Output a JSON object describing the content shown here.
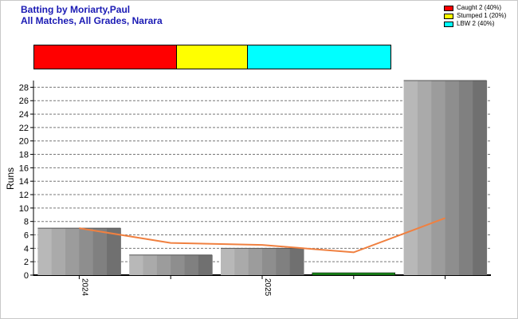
{
  "header": {
    "title_line1": "Batting by Moriarty,Paul",
    "title_line2": "All Matches, All Grades, Narara"
  },
  "legend": [
    {
      "label": "Caught 2 (40%)",
      "color": "#ff0000"
    },
    {
      "label": "Stumped 1 (20%)",
      "color": "#ffff00"
    },
    {
      "label": "LBW 2 (40%)",
      "color": "#00ffff"
    }
  ],
  "dismissal_bar": [
    {
      "name": "Caught",
      "percent": 40,
      "color": "#ff0000"
    },
    {
      "name": "Stumped",
      "percent": 20,
      "color": "#ffff00"
    },
    {
      "name": "LBW",
      "percent": 40,
      "color": "#00ffff"
    }
  ],
  "chart_data": {
    "type": "bar",
    "ylabel": "Runs",
    "xlabel": "",
    "ylim": [
      0,
      29
    ],
    "yticks": [
      0,
      2,
      4,
      6,
      8,
      10,
      12,
      14,
      16,
      18,
      20,
      22,
      24,
      26,
      28
    ],
    "x_tick_labels": [
      {
        "label": "2024",
        "index": 0
      },
      {
        "label": "2025",
        "index": 2
      }
    ],
    "bars": [
      {
        "value": 7,
        "color": "gray"
      },
      {
        "value": 3,
        "color": "gray"
      },
      {
        "value": 4,
        "color": "gray"
      },
      {
        "value": 0.3,
        "color": "green"
      },
      {
        "value": 29,
        "color": "gray"
      }
    ],
    "trend_line": {
      "color": "#f08040",
      "values": [
        7,
        4.8,
        4.5,
        3.4,
        8.5
      ]
    },
    "grid": true
  }
}
